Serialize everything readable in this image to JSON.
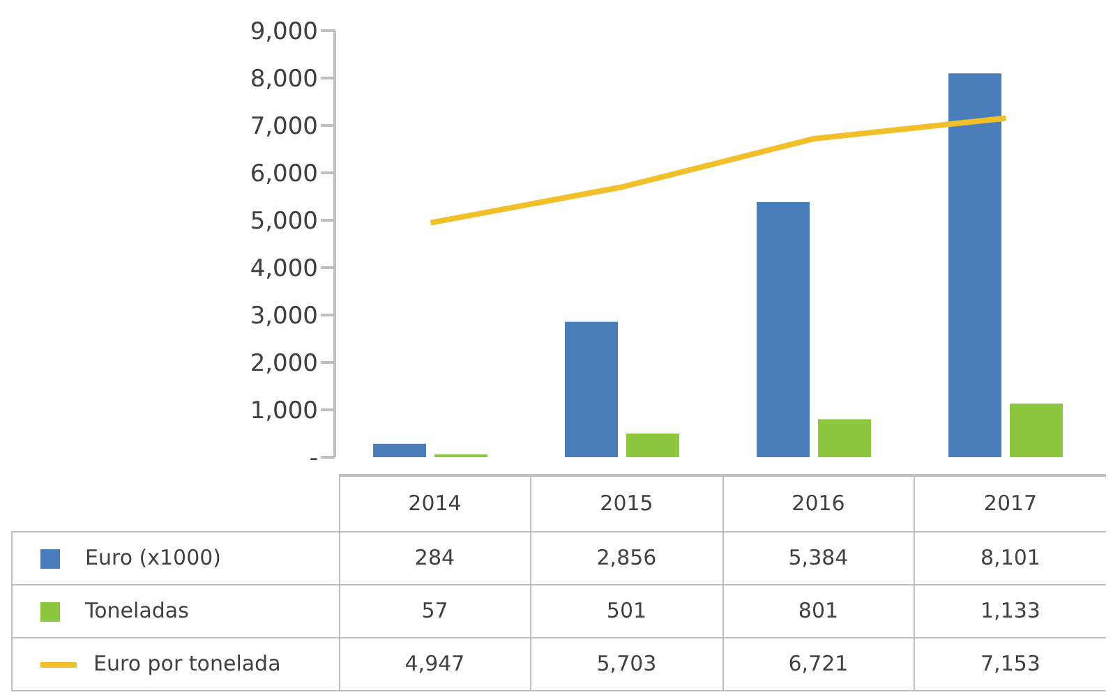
{
  "chart_data": {
    "type": "bar",
    "categories": [
      "2014",
      "2015",
      "2016",
      "2017"
    ],
    "series": [
      {
        "name": "Euro (x1000)",
        "color": "#4a7ebb",
        "values": [
          284,
          2856,
          5384,
          8101
        ],
        "value_labels": [
          "284",
          "2,856",
          "5,384",
          "8,101"
        ]
      },
      {
        "name": "Toneladas",
        "color": "#8dc63f",
        "values": [
          57,
          501,
          801,
          1133
        ],
        "value_labels": [
          "57",
          "501",
          "801",
          "1,133"
        ]
      },
      {
        "name": "Euro por tonelada",
        "type": "line",
        "color": "#f0bf2a",
        "values": [
          4947,
          5703,
          6721,
          7153
        ],
        "value_labels": [
          "4,947",
          "5,703",
          "6,721",
          "7,153"
        ]
      }
    ],
    "ylim": [
      0,
      9000
    ],
    "yticks": [
      {
        "value": 0,
        "label": "-"
      },
      {
        "value": 1000,
        "label": "1,000"
      },
      {
        "value": 2000,
        "label": "2,000"
      },
      {
        "value": 3000,
        "label": "3,000"
      },
      {
        "value": 4000,
        "label": "4,000"
      },
      {
        "value": 5000,
        "label": "5,000"
      },
      {
        "value": 6000,
        "label": "6,000"
      },
      {
        "value": 7000,
        "label": "7,000"
      },
      {
        "value": 8000,
        "label": "8,000"
      },
      {
        "value": 9000,
        "label": "9,000"
      }
    ],
    "legend": "bottom",
    "grid": false,
    "marker": "none"
  }
}
